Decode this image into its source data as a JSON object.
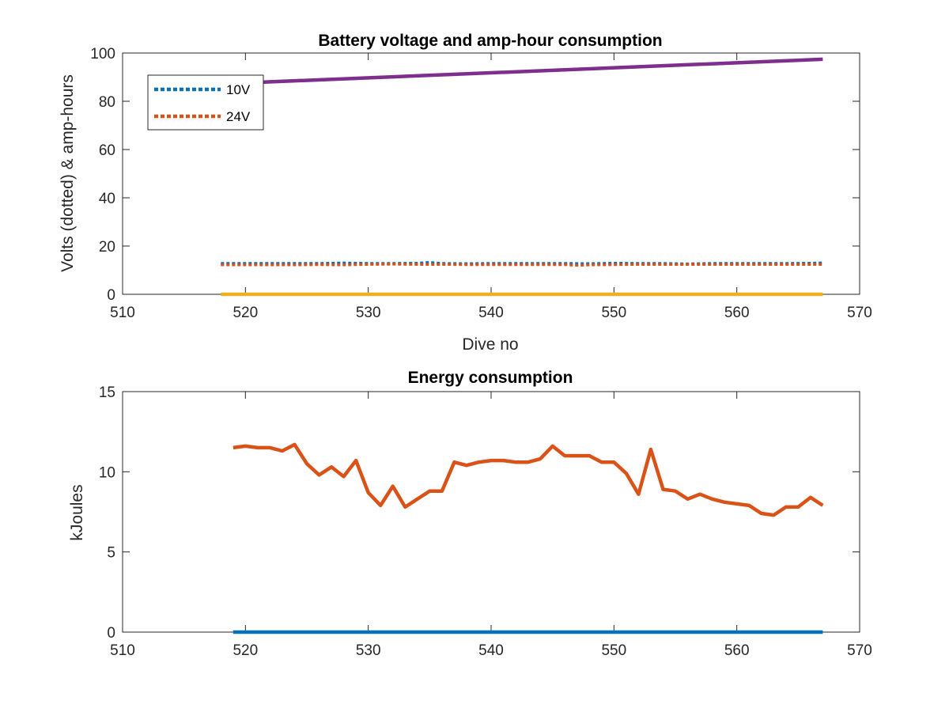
{
  "chart_data": [
    {
      "type": "line",
      "title": "Battery voltage and amp-hour consumption",
      "xlabel": "Dive no",
      "ylabel": "Volts (dotted) & amp-hours",
      "xlim": [
        510,
        570
      ],
      "ylim": [
        0,
        100
      ],
      "xticks": [
        510,
        520,
        530,
        540,
        550,
        560,
        570
      ],
      "yticks": [
        0,
        20,
        40,
        60,
        80,
        100
      ],
      "legend": {
        "placement": "top-left",
        "entries": [
          {
            "label": "10V",
            "color": "#0072BD",
            "style": "dotted"
          },
          {
            "label": "24V",
            "color": "#D95319",
            "style": "dotted"
          }
        ]
      },
      "series": [
        {
          "name": "10V",
          "color": "#0072BD",
          "style": "dotted",
          "x": [
            518,
            520,
            522,
            524,
            526,
            528,
            530,
            532,
            534,
            535,
            536,
            538,
            540,
            542,
            544,
            546,
            548,
            550,
            552,
            554,
            556,
            558,
            560,
            562,
            564,
            566,
            567
          ],
          "y": [
            12.8,
            12.8,
            12.8,
            12.8,
            12.8,
            13.0,
            12.8,
            12.8,
            12.9,
            13.2,
            12.8,
            12.7,
            12.8,
            12.8,
            12.8,
            12.8,
            12.7,
            12.9,
            12.8,
            12.8,
            12.6,
            12.8,
            12.8,
            12.8,
            12.8,
            12.9,
            13.0
          ]
        },
        {
          "name": "24V",
          "color": "#D95319",
          "style": "dotted",
          "x": [
            518,
            520,
            522,
            524,
            526,
            528,
            530,
            532,
            534,
            536,
            538,
            540,
            542,
            544,
            546,
            547,
            548,
            550,
            552,
            554,
            556,
            558,
            560,
            562,
            564,
            566,
            567
          ],
          "y": [
            12.2,
            12.2,
            12.2,
            12.2,
            12.3,
            12.2,
            12.4,
            12.5,
            12.4,
            12.4,
            12.3,
            12.3,
            12.3,
            12.3,
            12.3,
            12.0,
            12.2,
            12.3,
            12.4,
            12.4,
            12.4,
            12.4,
            12.4,
            12.4,
            12.4,
            12.4,
            12.4
          ]
        },
        {
          "name": "",
          "color": "#EDB120",
          "style": "solid",
          "x": [
            518,
            567
          ],
          "y": [
            0,
            0
          ]
        },
        {
          "name": "",
          "color": "#7E2F8E",
          "style": "solid",
          "x": [
            518,
            567
          ],
          "y": [
            87.2,
            97.4
          ]
        }
      ]
    },
    {
      "type": "line",
      "title": "Energy consumption",
      "xlabel": "",
      "ylabel": "kJoules",
      "xlim": [
        510,
        570
      ],
      "ylim": [
        0,
        15
      ],
      "xticks": [
        510,
        520,
        530,
        540,
        550,
        560,
        570
      ],
      "yticks": [
        0,
        5,
        10,
        15
      ],
      "series": [
        {
          "name": "",
          "color": "#0072BD",
          "style": "solid",
          "x": [
            519,
            567
          ],
          "y": [
            0,
            0
          ]
        },
        {
          "name": "",
          "color": "#D95319",
          "style": "solid",
          "x": [
            519,
            520,
            521,
            522,
            523,
            524,
            525,
            526,
            527,
            528,
            529,
            530,
            531,
            532,
            533,
            534,
            535,
            536,
            537,
            538,
            539,
            540,
            541,
            542,
            543,
            544,
            545,
            546,
            547,
            548,
            549,
            550,
            551,
            552,
            553,
            554,
            555,
            556,
            557,
            558,
            559,
            560,
            561,
            562,
            563,
            564,
            565,
            566,
            567
          ],
          "y": [
            11.5,
            11.6,
            11.5,
            11.5,
            11.3,
            11.7,
            10.5,
            9.8,
            10.3,
            9.7,
            10.7,
            8.7,
            7.9,
            9.1,
            7.8,
            8.3,
            8.8,
            8.8,
            10.6,
            10.4,
            10.6,
            10.7,
            10.7,
            10.6,
            10.6,
            10.8,
            11.6,
            11.0,
            11.0,
            11.0,
            10.6,
            10.6,
            9.9,
            8.6,
            11.4,
            8.9,
            8.8,
            8.3,
            8.6,
            8.3,
            8.1,
            8.0,
            7.9,
            7.4,
            7.3,
            7.8,
            7.8,
            8.4,
            7.9
          ]
        }
      ]
    }
  ]
}
